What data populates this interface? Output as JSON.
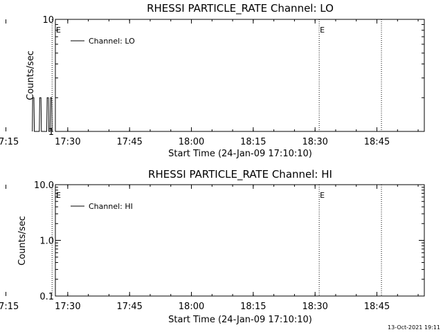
{
  "chart_data": [
    {
      "type": "line",
      "title": "RHESSI PARTICLE_RATE Channel: LO",
      "xlabel": "Start Time (24-Jan-09 17:10:10)",
      "ylabel": "Counts/sec",
      "yscale": "log",
      "ylim": [
        1,
        10
      ],
      "xlim_minutes": [
        17.0,
        106.5
      ],
      "yticks": [
        "1",
        "10"
      ],
      "xticks": [
        "17:15",
        "17:30",
        "17:45",
        "18:00",
        "18:15",
        "18:30",
        "18:45"
      ],
      "xticks_minutes": [
        5,
        20,
        35,
        50,
        65,
        80,
        95
      ],
      "legend": {
        "label": "Channel: LO",
        "position": "top-left"
      },
      "series": [
        {
          "name": "Channel: LO",
          "color": "#000000",
          "x": [
            11.4,
            11.5,
            11.8,
            11.9,
            12.2,
            13.1,
            13.2,
            13.5,
            13.6,
            13.9,
            14.9,
            15.0,
            15.3,
            15.4,
            15.7,
            15.8,
            16.1,
            16.2,
            16.5
          ],
          "y": [
            1,
            2,
            2,
            1,
            1,
            1,
            2,
            2,
            1,
            1,
            1,
            2,
            2,
            1,
            1,
            2,
            2,
            1,
            1
          ]
        }
      ],
      "vertical_lines": [
        {
          "x_minutes": 16.2,
          "style": "dotted",
          "label": ""
        },
        {
          "x_minutes": 81.0,
          "style": "dotted",
          "label": "E"
        },
        {
          "x_minutes": 96.1,
          "style": "dotted",
          "label": ""
        }
      ],
      "left_marker_label": "E"
    },
    {
      "type": "line",
      "title": "RHESSI PARTICLE_RATE Channel: HI",
      "xlabel": "Start Time (24-Jan-09 17:10:10)",
      "ylabel": "Counts/sec",
      "yscale": "log",
      "ylim": [
        0.1,
        10
      ],
      "xlim_minutes": [
        17.0,
        106.5
      ],
      "yticks": [
        "0.1",
        "1.0",
        "10.0"
      ],
      "xticks": [
        "17:15",
        "17:30",
        "17:45",
        "18:00",
        "18:15",
        "18:30",
        "18:45"
      ],
      "xticks_minutes": [
        5,
        20,
        35,
        50,
        65,
        80,
        95
      ],
      "legend": {
        "label": "Channel: HI",
        "position": "top-left"
      },
      "series": [],
      "vertical_lines": [
        {
          "x_minutes": 16.2,
          "style": "dotted",
          "label": ""
        },
        {
          "x_minutes": 81.0,
          "style": "dotted",
          "label": "E"
        },
        {
          "x_minutes": 96.1,
          "style": "dotted",
          "label": ""
        }
      ],
      "left_marker_label": "E"
    }
  ],
  "footer": {
    "timestamp": "13-Oct-2021 19:11"
  }
}
